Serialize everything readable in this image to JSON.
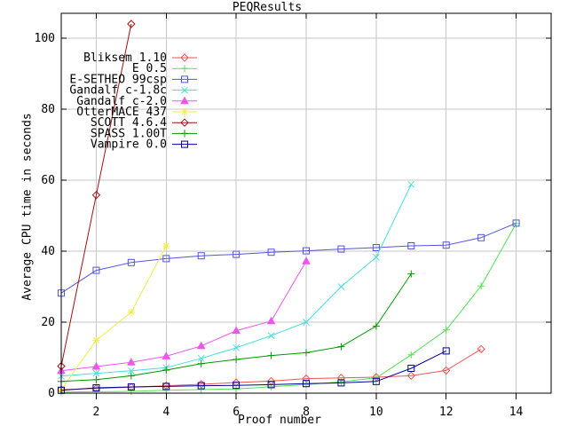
{
  "chart_data": {
    "type": "line",
    "title": "PEQResults",
    "xlabel": "Proof number",
    "ylabel": "Average CPU time in seconds",
    "xlim": [
      1,
      15
    ],
    "ylim": [
      0,
      107
    ],
    "xticks": [
      2,
      4,
      6,
      8,
      10,
      12,
      14
    ],
    "yticks": [
      0,
      20,
      40,
      60,
      80,
      100
    ],
    "grid": true,
    "legend_position": "upper-left-inside",
    "colors": {
      "background": "#ffffff",
      "axis": "#000000",
      "gridline": "#c6c6c6"
    },
    "series": [
      {
        "name": "Bliksem 1.10",
        "color": "#f05454",
        "marker": "diamond-open",
        "x": [
          1,
          2,
          3,
          4,
          5,
          6,
          7,
          8,
          9,
          10,
          11,
          12,
          13
        ],
        "values": [
          1.0,
          1.3,
          1.7,
          2.1,
          2.5,
          3.0,
          3.4,
          4.1,
          4.3,
          4.5,
          4.9,
          6.4,
          12.4
        ]
      },
      {
        "name": "E 0.5",
        "color": "#54e054",
        "marker": "plus",
        "x": [
          1,
          2,
          3,
          4,
          5,
          6,
          7,
          8,
          9,
          10,
          11,
          12,
          13,
          14
        ],
        "values": [
          0.3,
          0.4,
          0.5,
          0.8,
          1.0,
          1.2,
          1.8,
          2.4,
          3.2,
          4.3,
          10.8,
          17.8,
          30.2,
          47.8
        ]
      },
      {
        "name": "E-SETHEO 99csp",
        "color": "#5454e0",
        "marker": "square-open",
        "x": [
          1,
          2,
          3,
          4,
          5,
          6,
          7,
          8,
          9,
          10,
          11,
          12,
          13,
          14
        ],
        "values": [
          28.2,
          34.6,
          36.8,
          37.9,
          38.7,
          39.1,
          39.7,
          40.1,
          40.6,
          41.0,
          41.5,
          41.7,
          43.8,
          47.9
        ]
      },
      {
        "name": "Gandalf c-1.8c",
        "color": "#46dede",
        "marker": "x",
        "x": [
          1,
          2,
          3,
          4,
          5,
          6,
          7,
          8,
          9,
          10,
          11
        ],
        "values": [
          4.8,
          5.6,
          6.3,
          7.2,
          9.8,
          12.8,
          16.2,
          20.0,
          30.0,
          38.3,
          58.8
        ]
      },
      {
        "name": "Gandalf c-2.0",
        "color": "#ee55ee",
        "marker": "triangle-filled",
        "x": [
          1,
          2,
          3,
          4,
          5,
          6,
          7,
          8
        ],
        "values": [
          6.3,
          7.5,
          8.7,
          10.4,
          13.3,
          17.6,
          20.3,
          37.2
        ]
      },
      {
        "name": "OtterMACE 437",
        "color": "#eeee44",
        "marker": "star",
        "x": [
          1,
          2,
          3,
          4
        ],
        "values": [
          1.0,
          14.9,
          22.8,
          41.5
        ]
      },
      {
        "name": "SCOTT 4.6.4",
        "color": "#a01010",
        "marker": "diamond-open",
        "x": [
          1,
          2,
          3
        ],
        "values": [
          7.6,
          55.8,
          104.0
        ]
      },
      {
        "name": "SPASS 1.00T",
        "color": "#009800",
        "marker": "plus",
        "x": [
          1,
          2,
          3,
          4,
          5,
          6,
          7,
          8,
          9,
          10,
          11
        ],
        "values": [
          3.3,
          3.8,
          4.9,
          6.5,
          8.3,
          9.5,
          10.6,
          11.4,
          13.1,
          18.9,
          33.6
        ]
      },
      {
        "name": "Vampire 0.0",
        "color": "#000098",
        "marker": "square-open",
        "x": [
          1,
          2,
          3,
          4,
          5,
          6,
          7,
          8,
          9,
          10,
          11,
          12
        ],
        "values": [
          0.8,
          1.5,
          1.75,
          1.9,
          2.1,
          2.2,
          2.4,
          2.7,
          2.9,
          3.3,
          7.0,
          11.9
        ]
      }
    ]
  }
}
